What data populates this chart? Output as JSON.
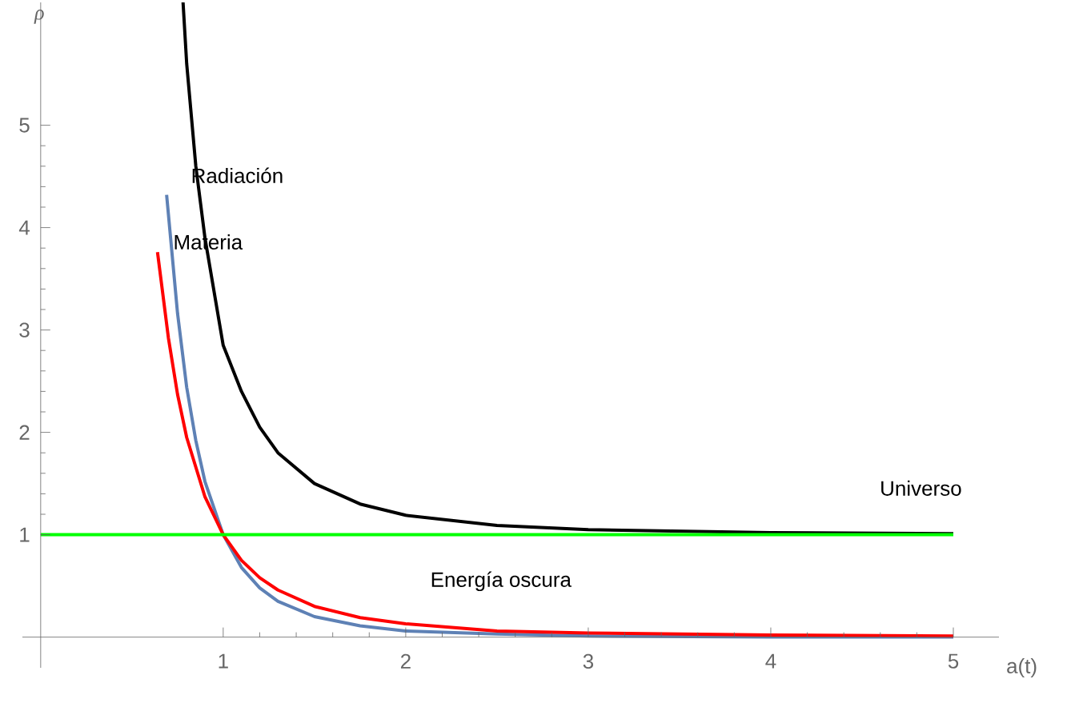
{
  "chart_data": {
    "type": "line",
    "xlabel": "a(t)",
    "ylabel": "ρ",
    "xlim": [
      -0.1,
      5.25
    ],
    "ylim": [
      -0.3,
      6.2
    ],
    "xticks": [
      1,
      2,
      3,
      4,
      5
    ],
    "yticks": [
      1,
      2,
      3,
      4,
      5
    ],
    "marker": "none",
    "line_style": "solid",
    "series": [
      {
        "color": "#000000",
        "x": [
          0.78,
          0.8,
          0.85,
          0.9,
          1,
          1.1,
          1.2,
          1.3,
          1.5,
          1.75,
          2,
          2.5,
          3,
          4,
          5
        ],
        "values": [
          6.2,
          5.6,
          4.6,
          3.9,
          2.85,
          2.4,
          2.05,
          1.8,
          1.5,
          1.3,
          1.19,
          1.09,
          1.05,
          1.02,
          1.01
        ]
      },
      {
        "color": "#5e81b5",
        "x": [
          0.69,
          0.75,
          0.8,
          0.85,
          0.9,
          1,
          1.1,
          1.2,
          1.3,
          1.5,
          1.75,
          2,
          2.5,
          3,
          4,
          5
        ],
        "values": [
          4.32,
          3.16,
          2.44,
          1.92,
          1.52,
          1.0,
          0.68,
          0.48,
          0.35,
          0.2,
          0.11,
          0.06,
          0.03,
          0.01,
          0,
          0
        ]
      },
      {
        "color": "#ff0000",
        "x": [
          0.64,
          0.7,
          0.75,
          0.8,
          0.9,
          1,
          1.1,
          1.2,
          1.3,
          1.5,
          1.75,
          2,
          2.5,
          3,
          4,
          5
        ],
        "values": [
          3.76,
          2.92,
          2.37,
          1.95,
          1.37,
          1,
          0.75,
          0.58,
          0.46,
          0.3,
          0.19,
          0.13,
          0.06,
          0.04,
          0.02,
          0.01
        ]
      },
      {
        "color": "#00ff00",
        "x": [
          0,
          5
        ],
        "values": [
          1,
          1
        ]
      }
    ],
    "annotations": [
      "Radiación",
      "Materia",
      "Universo",
      "Energía oscura"
    ]
  }
}
